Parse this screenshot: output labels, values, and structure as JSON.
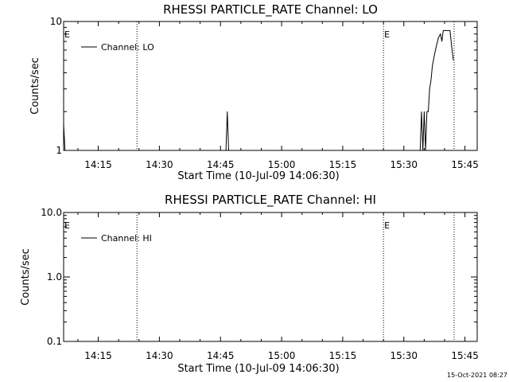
{
  "footer_timestamp": "15-Oct-2021 08:27",
  "chart_data": [
    {
      "type": "line",
      "title": "RHESSI PARTICLE_RATE Channel: LO",
      "xlabel": "Start Time (10-Jul-09 14:06:30)",
      "ylabel": "Counts/sec",
      "yscale": "log",
      "ylim": [
        1,
        10
      ],
      "xlim": [
        "14:06:30",
        "15:48:00"
      ],
      "x_ticks": [
        "14:15",
        "14:30",
        "14:45",
        "15:00",
        "15:15",
        "15:30",
        "15:45"
      ],
      "y_ticks": [
        "1",
        "10"
      ],
      "legend": {
        "placement": "top-left",
        "entries": [
          "Channel: LO"
        ]
      },
      "event_lines": [
        {
          "time": "14:24:30",
          "label": ""
        },
        {
          "time": "15:25:00",
          "label": "E"
        },
        {
          "time": "15:42:20",
          "label": ""
        }
      ],
      "edge_marker": "E",
      "series": [
        {
          "name": "Channel: LO",
          "x": [
            "14:06:30",
            "14:06:50",
            "14:07:00",
            "14:07:20",
            "14:46:20",
            "14:46:40",
            "14:47:00",
            "14:47:20",
            "15:34:00",
            "15:34:20",
            "15:34:40",
            "15:35:00",
            "15:35:20",
            "15:35:40",
            "15:36:00",
            "15:36:20",
            "15:36:40",
            "15:37:00",
            "15:37:30",
            "15:38:00",
            "15:38:30",
            "15:39:00",
            "15:39:20",
            "15:39:40",
            "15:40:00",
            "15:40:40",
            "15:41:20",
            "15:41:50",
            "15:42:10"
          ],
          "values": [
            1.6,
            1.0,
            1.0,
            1.0,
            1.0,
            2.0,
            1.0,
            1.0,
            1.0,
            2.0,
            1.0,
            2.0,
            1.0,
            2.0,
            2.0,
            3.0,
            3.5,
            4.5,
            5.5,
            6.5,
            7.5,
            8.0,
            7.0,
            8.5,
            8.5,
            8.5,
            8.5,
            6.0,
            5.0
          ]
        }
      ]
    },
    {
      "type": "line",
      "title": "RHESSI PARTICLE_RATE Channel: HI",
      "xlabel": "Start Time (10-Jul-09 14:06:30)",
      "ylabel": "Counts/sec",
      "yscale": "log",
      "ylim": [
        0.1,
        10
      ],
      "xlim": [
        "14:06:30",
        "15:48:00"
      ],
      "x_ticks": [
        "14:15",
        "14:30",
        "14:45",
        "15:00",
        "15:15",
        "15:30",
        "15:45"
      ],
      "y_ticks": [
        "0.1",
        "1.0",
        "10.0"
      ],
      "legend": {
        "placement": "top-left",
        "entries": [
          "Channel: HI"
        ]
      },
      "event_lines": [
        {
          "time": "14:24:30",
          "label": ""
        },
        {
          "time": "15:25:00",
          "label": "E"
        },
        {
          "time": "15:42:20",
          "label": ""
        }
      ],
      "edge_marker": "E",
      "series": [
        {
          "name": "Channel: HI",
          "x": [],
          "values": []
        }
      ]
    }
  ]
}
